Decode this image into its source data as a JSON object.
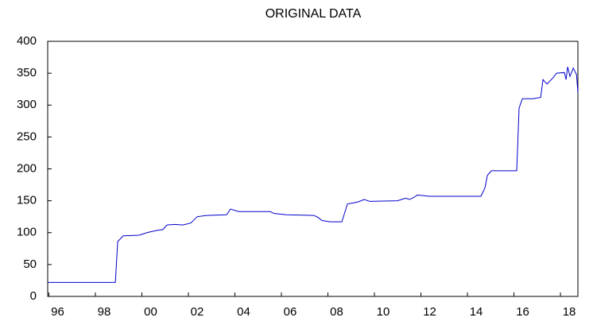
{
  "chart_data": {
    "type": "line",
    "title": "ORIGINAL DATA",
    "x": [
      1995.95,
      1998.86,
      1998.96,
      1999.2,
      1999.88,
      2000.22,
      2000.57,
      2000.91,
      2001.08,
      2001.42,
      2001.76,
      2002.1,
      2002.38,
      2002.79,
      2003.64,
      2003.81,
      2004.16,
      2005.52,
      2005.69,
      2006.21,
      2007.4,
      2007.57,
      2007.75,
      2008.09,
      2008.6,
      2008.84,
      2009.28,
      2009.56,
      2009.8,
      2010.99,
      2011.34,
      2011.51,
      2011.68,
      2011.85,
      2012.36,
      2014.58,
      2014.75,
      2014.86,
      2015.03,
      2016.12,
      2016.22,
      2016.36,
      2016.81,
      2017.15,
      2017.25,
      2017.42,
      2017.66,
      2017.83,
      2018.17,
      2018.24,
      2018.31,
      2018.41,
      2018.55,
      2018.69,
      2018.75
    ],
    "series": [
      {
        "color": "#0000cc",
        "values": [
          22,
          22,
          86,
          95,
          96,
          100,
          103,
          105,
          112,
          113,
          112,
          115,
          125,
          127,
          128,
          137,
          133,
          133,
          130,
          128,
          127,
          124,
          119,
          117,
          117,
          145,
          148,
          152,
          149,
          150,
          154,
          152,
          155,
          159,
          157,
          157,
          170,
          190,
          197,
          197,
          295,
          310,
          310,
          312,
          340,
          333,
          342,
          350,
          351,
          340,
          360,
          345,
          358,
          348,
          320
        ]
      }
    ],
    "xlim": [
      1995.95,
      2018.75
    ],
    "xticks": [
      {
        "value": 1996,
        "label": "96"
      },
      {
        "value": 1998,
        "label": "98"
      },
      {
        "value": 2000,
        "label": "00"
      },
      {
        "value": 2002,
        "label": "02"
      },
      {
        "value": 2004,
        "label": "04"
      },
      {
        "value": 2006,
        "label": "06"
      },
      {
        "value": 2008,
        "label": "08"
      },
      {
        "value": 2010,
        "label": "10"
      },
      {
        "value": 2012,
        "label": "12"
      },
      {
        "value": 2014,
        "label": "14"
      },
      {
        "value": 2016,
        "label": "16"
      },
      {
        "value": 2018,
        "label": "18"
      }
    ],
    "ylim": [
      0,
      400
    ],
    "yticks": [
      0,
      50,
      100,
      150,
      200,
      250,
      300,
      350,
      400
    ]
  }
}
